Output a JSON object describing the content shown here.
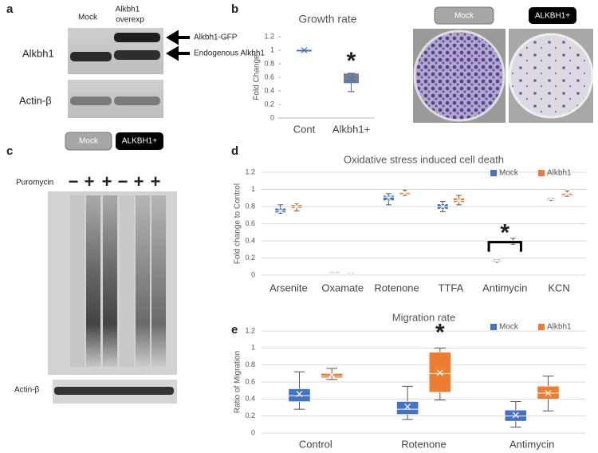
{
  "panels": {
    "a": {
      "letter": "a",
      "lane_mock": "Mock",
      "lane_oe_1": "Alkbh1",
      "lane_oe_2": "overexp",
      "row_1": "Alkbh1",
      "row_2": "Actin-β",
      "arrow_1": "Alkbh1-GFP",
      "arrow_2": "Endogenous Alkbh1"
    },
    "b": {
      "letter": "b",
      "dish_1": "Mock",
      "dish_2": "ALKBH1+"
    },
    "c": {
      "letter": "c",
      "group_1": "Mock",
      "group_2": "ALKBH1+",
      "treatment": "Puromycin",
      "lanes": [
        "−",
        "+",
        "+",
        "−",
        "+",
        "+"
      ],
      "loading": "Actin-β"
    },
    "d": {
      "letter": "d"
    },
    "e": {
      "letter": "e"
    }
  },
  "chart_data": [
    {
      "type": "box",
      "title": "Growth rate",
      "y_label": "Fold Change",
      "categories": [
        "Cont",
        "Alkbh1+"
      ],
      "color": "#7f7f7f",
      "line_color": "#4472c4",
      "values": [
        {
          "min": 1,
          "q1": 1,
          "median": 1,
          "q3": 1,
          "max": 1,
          "mean": 1
        },
        {
          "min": 0.39,
          "q1": 0.52,
          "median": 0.55,
          "q3": 0.65,
          "max": 0.66,
          "mean": 0.58
        }
      ],
      "ylim": [
        0,
        1.2
      ],
      "yticks": [
        0,
        0.2,
        0.4,
        0.6,
        0.8,
        1,
        1.2
      ],
      "grid": false,
      "annotation": "*"
    },
    {
      "type": "box",
      "title": "Oxidative stress induced cell death",
      "y_label": "Fold change to Control",
      "categories": [
        "Arsenite",
        "Oxamate",
        "Rotenone",
        "TTFA",
        "Antimycin",
        "KCN"
      ],
      "series": [
        {
          "name": "Mock",
          "color": "#4472c4",
          "values": [
            {
              "min": 0.72,
              "q1": 0.73,
              "median": 0.75,
              "q3": 0.78,
              "max": 0.82,
              "mean": 0.75
            },
            {
              "min": 0.03,
              "q1": 0.03,
              "median": 0.04,
              "q3": 0.04,
              "max": 0.04,
              "mean": 0.04
            },
            {
              "min": 0.82,
              "q1": 0.87,
              "median": 0.91,
              "q3": 0.93,
              "max": 0.95,
              "mean": 0.9
            },
            {
              "min": 0.74,
              "q1": 0.77,
              "median": 0.8,
              "q3": 0.83,
              "max": 0.86,
              "mean": 0.8
            },
            {
              "min": 0.15,
              "q1": 0.16,
              "median": 0.17,
              "q3": 0.17,
              "max": 0.18,
              "mean": 0.17
            },
            {
              "min": 0.87,
              "q1": 0.88,
              "median": 0.89,
              "q3": 0.89,
              "max": 0.9,
              "mean": 0.89
            }
          ]
        },
        {
          "name": "Alkbh1",
          "color": "#ed7d31",
          "values": [
            {
              "min": 0.75,
              "q1": 0.78,
              "median": 0.8,
              "q3": 0.82,
              "max": 0.83,
              "mean": 0.8
            },
            {
              "min": 0.02,
              "q1": 0.03,
              "median": 0.03,
              "q3": 0.03,
              "max": 0.03,
              "mean": 0.03
            },
            {
              "min": 0.93,
              "q1": 0.94,
              "median": 0.96,
              "q3": 0.97,
              "max": 0.99,
              "mean": 0.96
            },
            {
              "min": 0.82,
              "q1": 0.85,
              "median": 0.87,
              "q3": 0.9,
              "max": 0.93,
              "mean": 0.87
            },
            {
              "min": 0.36,
              "q1": 0.37,
              "median": 0.39,
              "q3": 0.4,
              "max": 0.43,
              "mean": 0.39
            },
            {
              "min": 0.92,
              "q1": 0.93,
              "median": 0.95,
              "q3": 0.96,
              "max": 0.98,
              "mean": 0.95
            }
          ]
        }
      ],
      "ylim": [
        0,
        1.2
      ],
      "yticks": [
        0,
        0.2,
        0.4,
        0.6,
        0.8,
        1,
        1.2
      ],
      "grid": true,
      "legend": "top-right",
      "annotation": "*"
    },
    {
      "type": "box",
      "title": "Migration rate",
      "y_label": "Ratio of Migration",
      "categories": [
        "Control",
        "Rotenone",
        "Antimycin"
      ],
      "series": [
        {
          "name": "Mock",
          "color": "#4472c4",
          "values": [
            {
              "min": 0.28,
              "q1": 0.37,
              "median": 0.44,
              "q3": 0.52,
              "max": 0.72,
              "mean": 0.46
            },
            {
              "min": 0.16,
              "q1": 0.22,
              "median": 0.28,
              "q3": 0.37,
              "max": 0.55,
              "mean": 0.31
            },
            {
              "min": 0.07,
              "q1": 0.14,
              "median": 0.2,
              "q3": 0.27,
              "max": 0.37,
              "mean": 0.21
            }
          ]
        },
        {
          "name": "Alkbh1",
          "color": "#ed7d31",
          "values": [
            {
              "min": 0.63,
              "q1": 0.65,
              "median": 0.67,
              "q3": 0.7,
              "max": 0.76,
              "mean": 0.68
            },
            {
              "min": 0.39,
              "q1": 0.48,
              "median": 0.7,
              "q3": 0.95,
              "max": 1,
              "mean": 0.71
            },
            {
              "min": 0.26,
              "q1": 0.4,
              "median": 0.47,
              "q3": 0.55,
              "max": 0.67,
              "mean": 0.47
            }
          ]
        }
      ],
      "ylim": [
        0,
        1.2
      ],
      "yticks": [
        0,
        0.2,
        0.4,
        0.6,
        0.8,
        1,
        1.2
      ],
      "grid": true,
      "legend": "top-right",
      "annotation": "*"
    }
  ]
}
